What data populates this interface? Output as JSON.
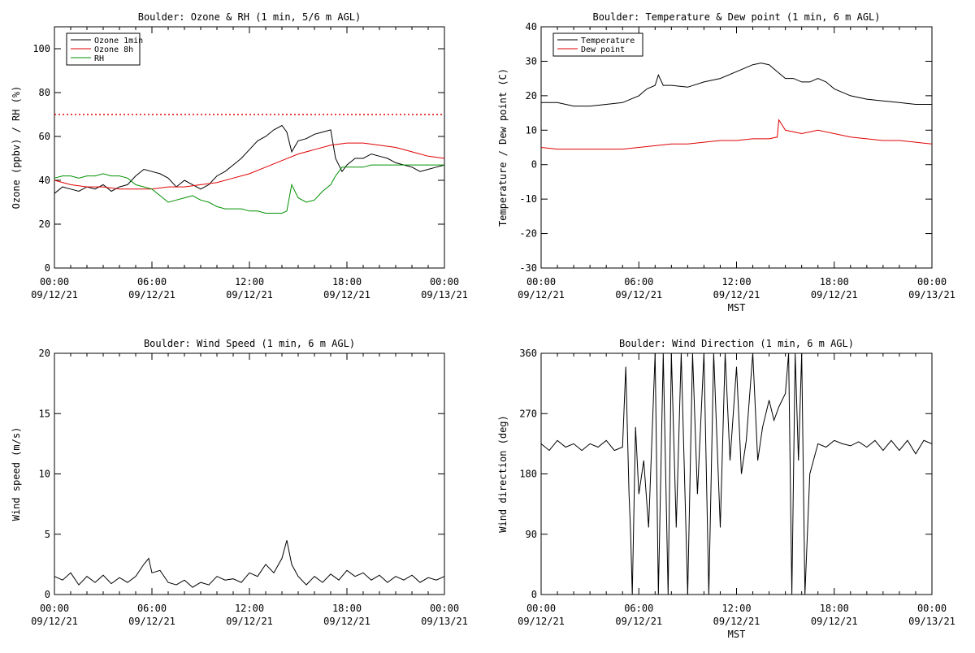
{
  "chart_data": [
    {
      "type": "line",
      "title": "Boulder: Ozone & RH (1 min, 5/6 m AGL)",
      "xlabel": "",
      "ylabel": "Ozone (ppbv) / RH (%)",
      "ylim": [
        0,
        110
      ],
      "yticks": [
        0,
        20,
        40,
        60,
        80,
        100
      ],
      "xlim": [
        0,
        24
      ],
      "xticks": [
        {
          "time": "00:00",
          "date": "09/12/21"
        },
        {
          "time": "06:00",
          "date": "09/12/21"
        },
        {
          "time": "12:00",
          "date": "09/12/21"
        },
        {
          "time": "18:00",
          "date": "09/12/21"
        },
        {
          "time": "00:00",
          "date": "09/13/21"
        }
      ],
      "legend_position": "top-left",
      "reference_line": {
        "y": 70,
        "color": "#e00000",
        "style": "dotted"
      },
      "series": [
        {
          "name": "Ozone 1min",
          "color": "#000000",
          "x": [
            0,
            0.5,
            1,
            1.5,
            2,
            2.5,
            3,
            3.5,
            4,
            4.5,
            5,
            5.5,
            6,
            6.5,
            7,
            7.5,
            8,
            8.5,
            9,
            9.5,
            10,
            10.5,
            11,
            11.5,
            12,
            12.5,
            13,
            13.5,
            14,
            14.3,
            14.6,
            15,
            15.5,
            16,
            16.5,
            17,
            17.3,
            17.7,
            18,
            18.5,
            19,
            19.5,
            20,
            20.5,
            21,
            21.5,
            22,
            22.5,
            23,
            23.5,
            24
          ],
          "y": [
            34,
            37,
            36,
            35,
            37,
            36,
            38,
            35,
            37,
            38,
            42,
            45,
            44,
            43,
            41,
            37,
            40,
            38,
            36,
            38,
            42,
            44,
            47,
            50,
            54,
            58,
            60,
            63,
            65,
            62,
            53,
            58,
            59,
            61,
            62,
            63,
            50,
            44,
            47,
            50,
            50,
            52,
            51,
            50,
            48,
            47,
            46,
            44,
            45,
            46,
            47
          ]
        },
        {
          "name": "Ozone 8h",
          "color": "#e00000",
          "x": [
            0,
            1,
            2,
            3,
            4,
            5,
            6,
            7,
            8,
            9,
            10,
            11,
            12,
            13,
            14,
            15,
            16,
            17,
            18,
            19,
            20,
            21,
            22,
            23,
            24
          ],
          "y": [
            40,
            38,
            37,
            37,
            36,
            36,
            36,
            37,
            37,
            38,
            39,
            41,
            43,
            46,
            49,
            52,
            54,
            56,
            57,
            57,
            56,
            55,
            53,
            51,
            50
          ]
        },
        {
          "name": "RH",
          "color": "#009000",
          "x": [
            0,
            0.5,
            1,
            1.5,
            2,
            2.5,
            3,
            3.5,
            4,
            4.5,
            5,
            5.5,
            6,
            6.5,
            7,
            7.5,
            8,
            8.5,
            9,
            9.5,
            10,
            10.5,
            11,
            11.5,
            12,
            12.5,
            13,
            13.5,
            14,
            14.3,
            14.6,
            15,
            15.5,
            16,
            16.5,
            17,
            17.3,
            17.7,
            18,
            18.5,
            19,
            19.5,
            20,
            20.5,
            21,
            21.5,
            22,
            22.5,
            23,
            23.5,
            24
          ],
          "y": [
            41,
            42,
            42,
            41,
            42,
            42,
            43,
            42,
            42,
            41,
            38,
            37,
            36,
            33,
            30,
            31,
            32,
            33,
            31,
            30,
            28,
            27,
            27,
            27,
            26,
            26,
            25,
            25,
            25,
            26,
            38,
            32,
            30,
            31,
            35,
            38,
            42,
            46,
            46,
            46,
            46,
            47,
            47,
            47,
            47,
            47,
            47,
            47,
            47,
            47,
            47
          ]
        }
      ]
    },
    {
      "type": "line",
      "title": "Boulder: Temperature & Dew point (1 min, 6 m AGL)",
      "xlabel": "MST",
      "ylabel": "Temperature / Dew point (C)",
      "ylim": [
        -30,
        40
      ],
      "yticks": [
        -30,
        -20,
        -10,
        0,
        10,
        20,
        30,
        40
      ],
      "xlim": [
        0,
        24
      ],
      "xticks": [
        {
          "time": "00:00",
          "date": "09/12/21"
        },
        {
          "time": "06:00",
          "date": "09/12/21"
        },
        {
          "time": "12:00",
          "date": "09/12/21"
        },
        {
          "time": "18:00",
          "date": "09/12/21"
        },
        {
          "time": "00:00",
          "date": "09/13/21"
        }
      ],
      "legend_position": "top-left",
      "series": [
        {
          "name": "Temperature",
          "color": "#000000",
          "x": [
            0,
            1,
            2,
            3,
            4,
            5,
            6,
            6.5,
            7,
            7.2,
            7.5,
            8,
            9,
            10,
            11,
            12,
            12.5,
            13,
            13.5,
            14,
            14.5,
            15,
            15.5,
            16,
            16.5,
            17,
            17.5,
            18,
            19,
            20,
            21,
            22,
            23,
            24
          ],
          "y": [
            18,
            18,
            17,
            17,
            17.5,
            18,
            20,
            22,
            23,
            26,
            23,
            23,
            22.5,
            24,
            25,
            27,
            28,
            29,
            29.5,
            29,
            27,
            25,
            25,
            24,
            24,
            25,
            24,
            22,
            20,
            19,
            18.5,
            18,
            17.5,
            17.5
          ]
        },
        {
          "name": "Dew point",
          "color": "#e00000",
          "x": [
            0,
            1,
            2,
            3,
            4,
            5,
            6,
            7,
            8,
            9,
            10,
            11,
            12,
            13,
            14,
            14.5,
            14.6,
            15,
            16,
            17,
            18,
            19,
            20,
            21,
            22,
            23,
            24
          ],
          "y": [
            5,
            4.5,
            4.5,
            4.5,
            4.5,
            4.5,
            5,
            5.5,
            6,
            6,
            6.5,
            7,
            7,
            7.5,
            7.5,
            8,
            13,
            10,
            9,
            10,
            9,
            8,
            7.5,
            7,
            7,
            6.5,
            6
          ]
        }
      ]
    },
    {
      "type": "line",
      "title": "Boulder: Wind Speed (1 min, 6 m AGL)",
      "xlabel": "",
      "ylabel": "Wind speed (m/s)",
      "ylim": [
        0,
        20
      ],
      "yticks": [
        0,
        5,
        10,
        15,
        20
      ],
      "xlim": [
        0,
        24
      ],
      "xticks": [
        {
          "time": "00:00",
          "date": "09/12/21"
        },
        {
          "time": "06:00",
          "date": "09/12/21"
        },
        {
          "time": "12:00",
          "date": "09/12/21"
        },
        {
          "time": "18:00",
          "date": "09/12/21"
        },
        {
          "time": "00:00",
          "date": "09/13/21"
        }
      ],
      "series": [
        {
          "name": "",
          "color": "#000000",
          "x": [
            0,
            0.5,
            1,
            1.5,
            2,
            2.5,
            3,
            3.5,
            4,
            4.5,
            5,
            5.5,
            5.8,
            6,
            6.5,
            7,
            7.5,
            8,
            8.5,
            9,
            9.5,
            10,
            10.5,
            11,
            11.5,
            12,
            12.5,
            13,
            13.5,
            14,
            14.3,
            14.6,
            15,
            15.5,
            16,
            16.5,
            17,
            17.5,
            18,
            18.5,
            19,
            19.5,
            20,
            20.5,
            21,
            21.5,
            22,
            22.5,
            23,
            23.5,
            24
          ],
          "y": [
            1.5,
            1.2,
            1.8,
            0.8,
            1.5,
            1,
            1.6,
            0.9,
            1.4,
            1,
            1.5,
            2.5,
            3,
            1.8,
            2,
            1,
            0.8,
            1.2,
            0.6,
            1,
            0.8,
            1.5,
            1.2,
            1.3,
            1,
            1.8,
            1.5,
            2.5,
            1.8,
            3,
            4.5,
            2.5,
            1.5,
            0.8,
            1.5,
            1,
            1.7,
            1.2,
            2,
            1.5,
            1.8,
            1.2,
            1.6,
            1,
            1.5,
            1.2,
            1.6,
            1,
            1.4,
            1.2,
            1.5
          ]
        }
      ]
    },
    {
      "type": "line",
      "title": "Boulder: Wind Direction (1 min, 6 m AGL)",
      "xlabel": "MST",
      "ylabel": "Wind direction (deg)",
      "ylim": [
        0,
        360
      ],
      "yticks": [
        0,
        90,
        180,
        270,
        360
      ],
      "xlim": [
        0,
        24
      ],
      "xticks": [
        {
          "time": "00:00",
          "date": "09/12/21"
        },
        {
          "time": "06:00",
          "date": "09/12/21"
        },
        {
          "time": "12:00",
          "date": "09/12/21"
        },
        {
          "time": "18:00",
          "date": "09/12/21"
        },
        {
          "time": "00:00",
          "date": "09/13/21"
        }
      ],
      "series": [
        {
          "name": "",
          "color": "#000000",
          "x": [
            0,
            0.5,
            1,
            1.5,
            2,
            2.5,
            3,
            3.5,
            4,
            4.5,
            5,
            5.2,
            5.4,
            5.5,
            5.6,
            5.8,
            6,
            6.3,
            6.6,
            7,
            7.2,
            7.5,
            7.8,
            8,
            8.3,
            8.6,
            9,
            9.3,
            9.6,
            10,
            10.3,
            10.6,
            11,
            11.3,
            11.6,
            12,
            12.3,
            12.6,
            13,
            13.3,
            13.6,
            14,
            14.3,
            14.6,
            15,
            15.2,
            15.4,
            15.6,
            15.8,
            16,
            16.2,
            16.5,
            17,
            17.5,
            18,
            18.5,
            19,
            19.5,
            20,
            20.5,
            21,
            21.5,
            22,
            22.5,
            23,
            23.5,
            24
          ],
          "y": [
            225,
            215,
            230,
            220,
            225,
            215,
            225,
            220,
            230,
            215,
            220,
            340,
            150,
            90,
            0,
            250,
            150,
            200,
            100,
            360,
            0,
            360,
            0,
            360,
            100,
            360,
            0,
            360,
            150,
            360,
            0,
            360,
            100,
            360,
            200,
            340,
            180,
            230,
            360,
            200,
            250,
            290,
            260,
            280,
            300,
            360,
            0,
            360,
            200,
            360,
            0,
            180,
            225,
            220,
            230,
            225,
            222,
            228,
            220,
            230,
            215,
            230,
            215,
            230,
            210,
            230,
            225
          ]
        }
      ]
    }
  ]
}
